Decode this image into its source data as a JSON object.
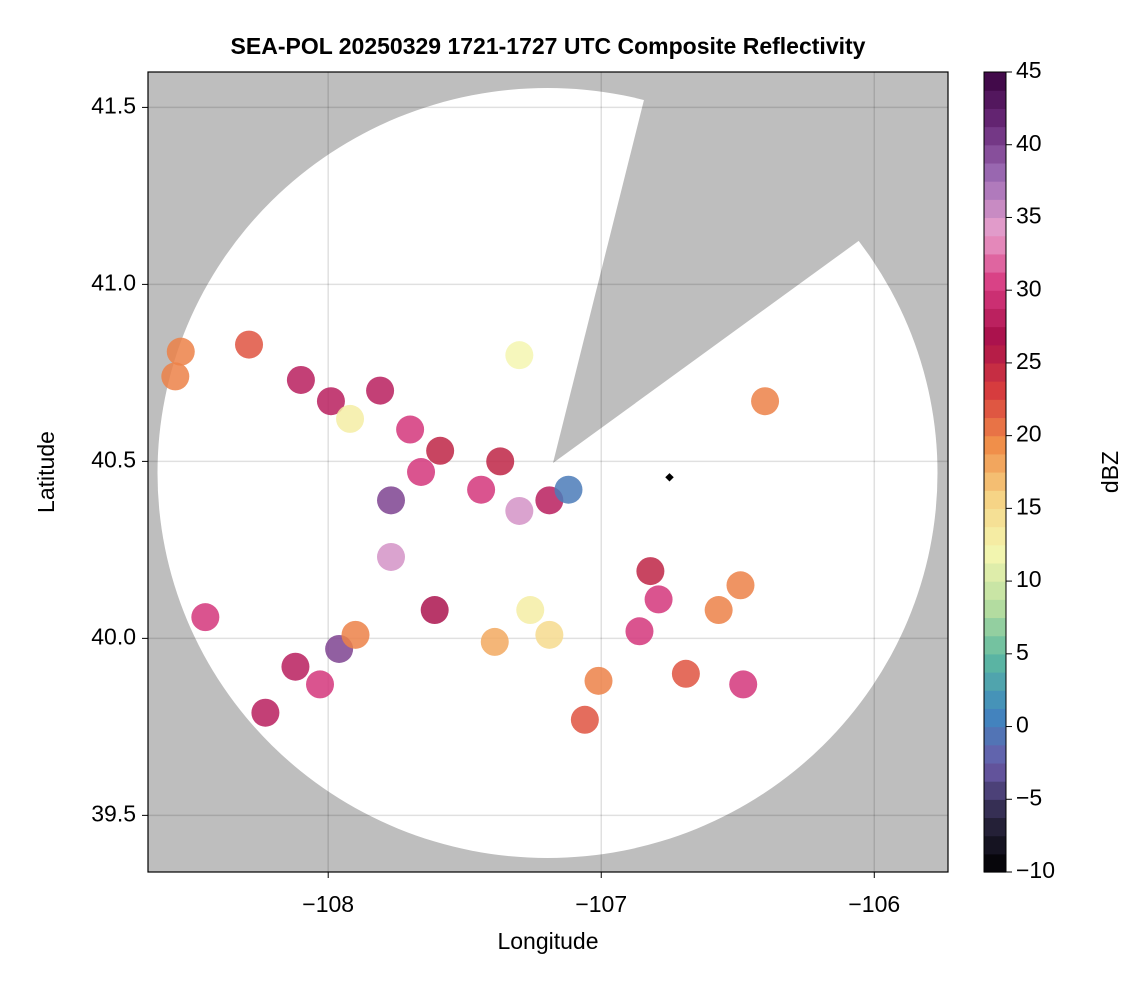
{
  "chart_data": {
    "type": "scatter",
    "title": "SEA-POL 20250329 1721-1727 UTC Composite Reflectivity",
    "xlabel": "Longitude",
    "ylabel": "Latitude",
    "colorbar_label": "dBZ",
    "xlim": [
      -108.66,
      -105.73
    ],
    "ylim": [
      39.34,
      41.6
    ],
    "xticks": [
      {
        "value": -108,
        "label": "−108"
      },
      {
        "value": -107,
        "label": "−107"
      },
      {
        "value": -106,
        "label": "−106"
      }
    ],
    "yticks": [
      39.5,
      40.0,
      40.5,
      41.0,
      41.5
    ],
    "grid": true,
    "clim": [
      -10,
      45
    ],
    "cticks": [
      {
        "value": -10,
        "label": "−10"
      },
      {
        "value": -5,
        "label": "−5"
      },
      0,
      5,
      10,
      15,
      20,
      25,
      30,
      35,
      40,
      45
    ],
    "colormap": [
      "#000000",
      "#2a2540",
      "#6a5aa8",
      "#3f88c0",
      "#5cb8a0",
      "#b8dea0",
      "#f4f6b0",
      "#f6d486",
      "#f0904a",
      "#d83e3e",
      "#a8104a",
      "#d83a80",
      "#e8a0cc",
      "#a070b8",
      "#6a2a7a",
      "#3a0440"
    ],
    "x": [
      -108.29,
      -108.1,
      -107.99,
      -107.92,
      -107.81,
      -107.7,
      -107.66,
      -107.77,
      -107.59,
      -107.44,
      -107.3,
      -107.19,
      -107.37,
      -107.12,
      -106.82,
      -106.79,
      -106.86,
      -107.96,
      -108.03,
      -107.9,
      -107.77,
      -108.45,
      -108.23,
      -108.12,
      -107.61,
      -107.26,
      -107.19,
      -107.01,
      -106.69,
      -106.48,
      -106.57,
      -106.49,
      -107.06,
      -108.56,
      -106.4,
      -107.3,
      -108.54,
      -107.39
    ],
    "y": [
      40.83,
      40.73,
      40.67,
      40.62,
      40.7,
      40.59,
      40.47,
      40.39,
      40.53,
      40.42,
      40.36,
      40.39,
      40.5,
      40.42,
      40.19,
      40.11,
      40.02,
      39.97,
      39.87,
      40.01,
      40.23,
      40.06,
      39.79,
      39.92,
      40.08,
      40.08,
      40.01,
      39.88,
      39.9,
      39.87,
      40.08,
      40.15,
      39.77,
      40.74,
      40.67,
      40.8,
      40.81,
      39.99
    ],
    "values": [
      22,
      28,
      28,
      13,
      28,
      30,
      30,
      40,
      25,
      30,
      35,
      28,
      25,
      0,
      25,
      30,
      30,
      40,
      30,
      20,
      35,
      30,
      28,
      28,
      27,
      13,
      15,
      20,
      22,
      30,
      20,
      20,
      22,
      20,
      20,
      12,
      20,
      18
    ],
    "site": {
      "x": -106.75,
      "y": 40.455
    }
  }
}
